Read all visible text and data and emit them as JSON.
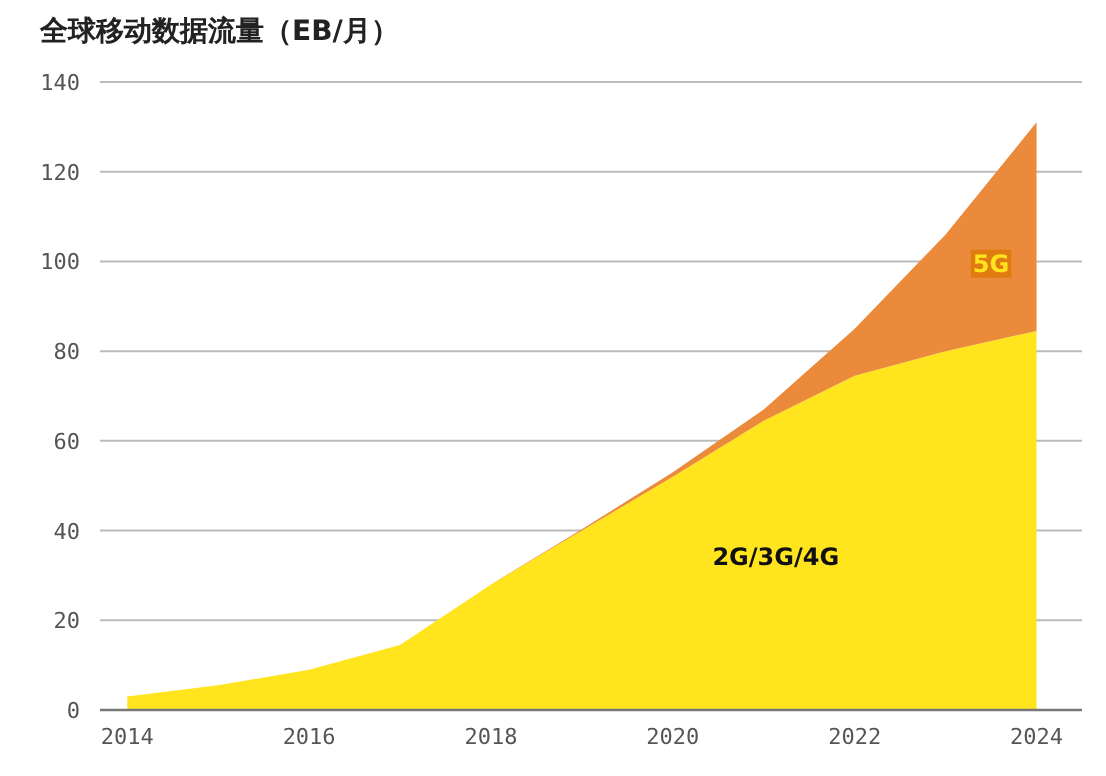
{
  "chart_data": {
    "type": "area",
    "title": "全球移动数据流量（EB/月）",
    "stacked": true,
    "grid": "y",
    "legend": false,
    "x": [
      2014,
      2015,
      2016,
      2017,
      2018,
      2019,
      2020,
      2021,
      2022,
      2023,
      2024
    ],
    "series": [
      {
        "name": "2G/3G/4G",
        "color": "#ffe41e",
        "values": [
          3,
          5.5,
          9,
          14.5,
          28,
          40,
          52,
          64.5,
          74.5,
          80,
          84.5
        ]
      },
      {
        "name": "5G",
        "color": "#ea8a3a",
        "values": [
          0,
          0,
          0,
          0,
          0,
          0.3,
          1,
          2.5,
          10.5,
          26,
          46.5
        ]
      }
    ],
    "xlim": [
      2013.7,
      2024.5
    ],
    "ylim": [
      0,
      140
    ],
    "xticks": [
      2014,
      2016,
      2018,
      2020,
      2022,
      2024
    ],
    "yticks": [
      0,
      20,
      40,
      60,
      80,
      100,
      120,
      140
    ]
  }
}
